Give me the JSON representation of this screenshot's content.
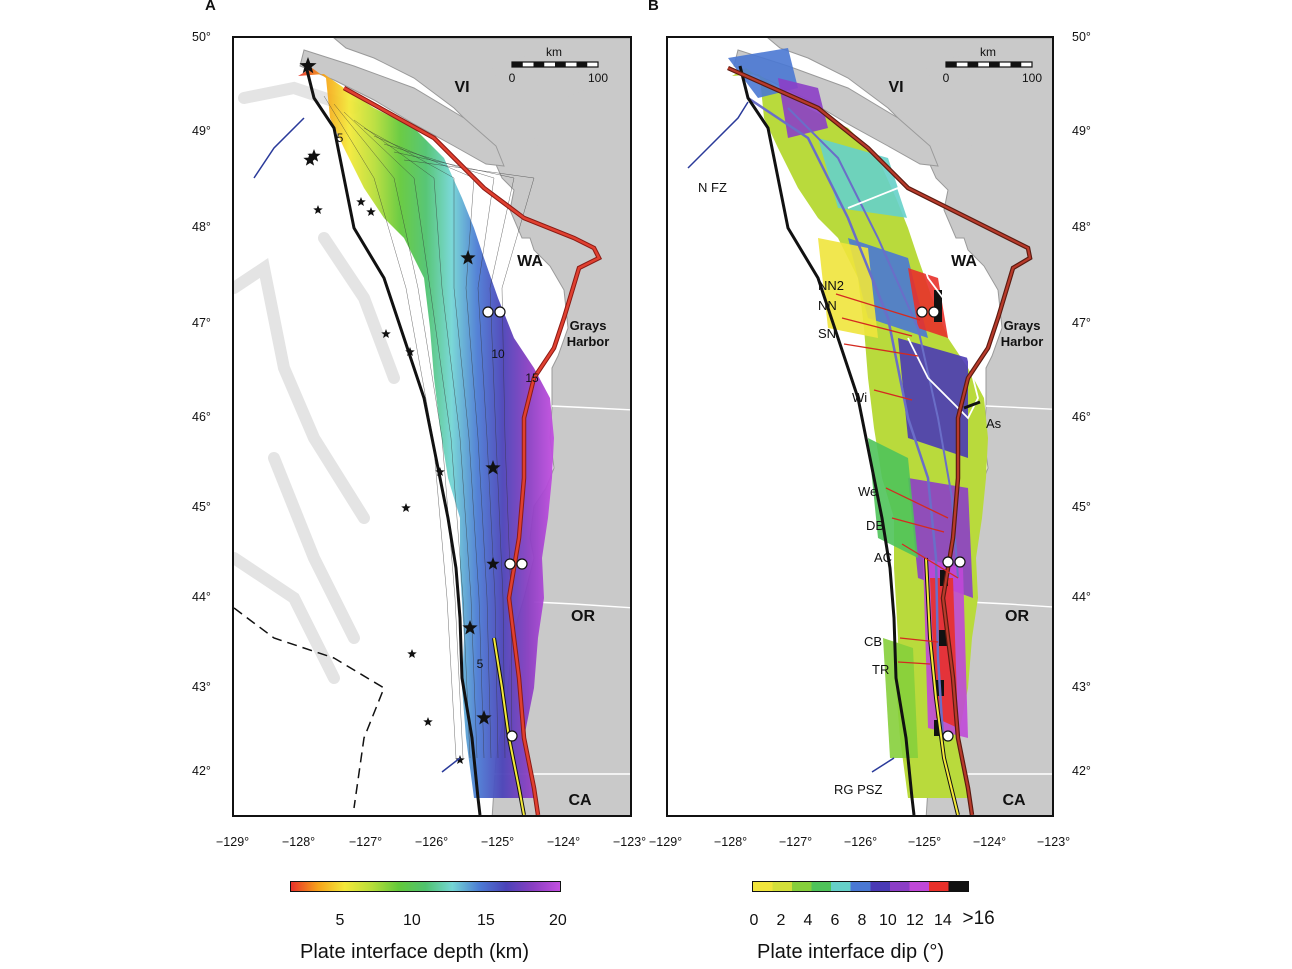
{
  "panels": [
    {
      "letter": "A",
      "regions": {
        "vi": "VI",
        "wa": "WA",
        "or": "OR",
        "ca": "CA",
        "grays": "Grays",
        "harbor": "Harbor"
      },
      "scale": {
        "unit": "km",
        "start": "0",
        "end": "100"
      },
      "contours": [
        "5",
        "10",
        "15",
        "5"
      ],
      "colorbar": {
        "title": "Plate interface depth (km)",
        "ticks": [
          "5",
          "10",
          "15",
          "20"
        ],
        "colors": [
          "#e8322a",
          "#f6a21a",
          "#f4e93a",
          "#b8de3a",
          "#63c93b",
          "#4fc36f",
          "#74d6d5",
          "#4c7cd4",
          "#4b43b8",
          "#8a3fc2",
          "#c34fe0"
        ]
      }
    },
    {
      "letter": "B",
      "regions": {
        "vi": "VI",
        "wa": "WA",
        "or": "OR",
        "ca": "CA",
        "grays": "Grays",
        "harbor": "Harbor"
      },
      "scale": {
        "unit": "km",
        "start": "0",
        "end": "100"
      },
      "features": [
        "N FZ",
        "NN2",
        "NN",
        "SN",
        "Wi",
        "As",
        "We",
        "DB",
        "AC",
        "CB",
        "TR",
        "RG PSZ"
      ],
      "colorbar": {
        "title": "Plate interface dip (°)",
        "ticks": [
          "0",
          "2",
          "4",
          "6",
          "8",
          "10",
          "12",
          "14",
          ">16"
        ],
        "colors": [
          "#f0e43c",
          "#d3df3a",
          "#86cf3b",
          "#4fc35a",
          "#66d0c9",
          "#4a78d3",
          "#4a3ab5",
          "#8c3ec6",
          "#c048d8",
          "#e8302a",
          "#111111"
        ]
      }
    }
  ],
  "lat_labels": [
    "50°",
    "49°",
    "48°",
    "47°",
    "46°",
    "45°",
    "44°",
    "43°",
    "42°"
  ],
  "lon_labels": [
    "−129°",
    "−128°",
    "−127°",
    "−126°",
    "−125°",
    "−124°",
    "−123°"
  ]
}
